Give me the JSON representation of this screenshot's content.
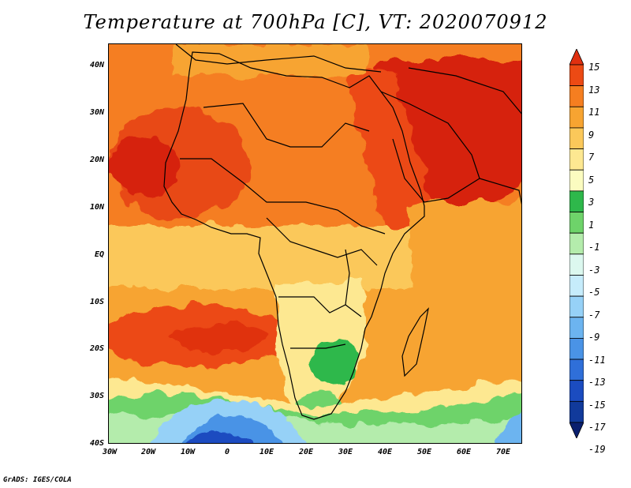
{
  "title": "Temperature at 700hPa [C], VT: 2020070912",
  "credit": "GrADS: IGES/COLA",
  "map": {
    "lat_labels": [
      "40N",
      "30N",
      "20N",
      "10N",
      "EQ",
      "10S",
      "20S",
      "30S",
      "40S"
    ],
    "lon_labels": [
      "30W",
      "20W",
      "10W",
      "0",
      "10E",
      "20E",
      "30E",
      "40E",
      "50E",
      "60E",
      "70E"
    ]
  },
  "colorbar": {
    "labels": [
      "15",
      "13",
      "11",
      "9",
      "7",
      "5",
      "3",
      "1",
      "-1",
      "-3",
      "-5",
      "-7",
      "-9",
      "-11",
      "-13",
      "-15",
      "-17",
      "-19"
    ],
    "colors": [
      "#e03010",
      "#ec4a14",
      "#f57e20",
      "#f7a431",
      "#fbc85a",
      "#fde891",
      "#fbfcc0",
      "#2eb84b",
      "#6ed36a",
      "#b4ecac",
      "#dcf8ef",
      "#c6ecfb",
      "#96d1f7",
      "#6cb4f0",
      "#4a93e6",
      "#2f6fd9",
      "#1b4cc0",
      "#113a9b",
      "#0a1f6e"
    ]
  },
  "colors": {
    "hot": "#d6200e",
    "warm": "#f57e20",
    "mild": "#f7a431",
    "light": "#fbc85a",
    "pale": "#fde891",
    "green": "#2eb84b",
    "lightgreen": "#6ed36a",
    "cool": "#4a93e6",
    "cold": "#1b4cc0"
  }
}
